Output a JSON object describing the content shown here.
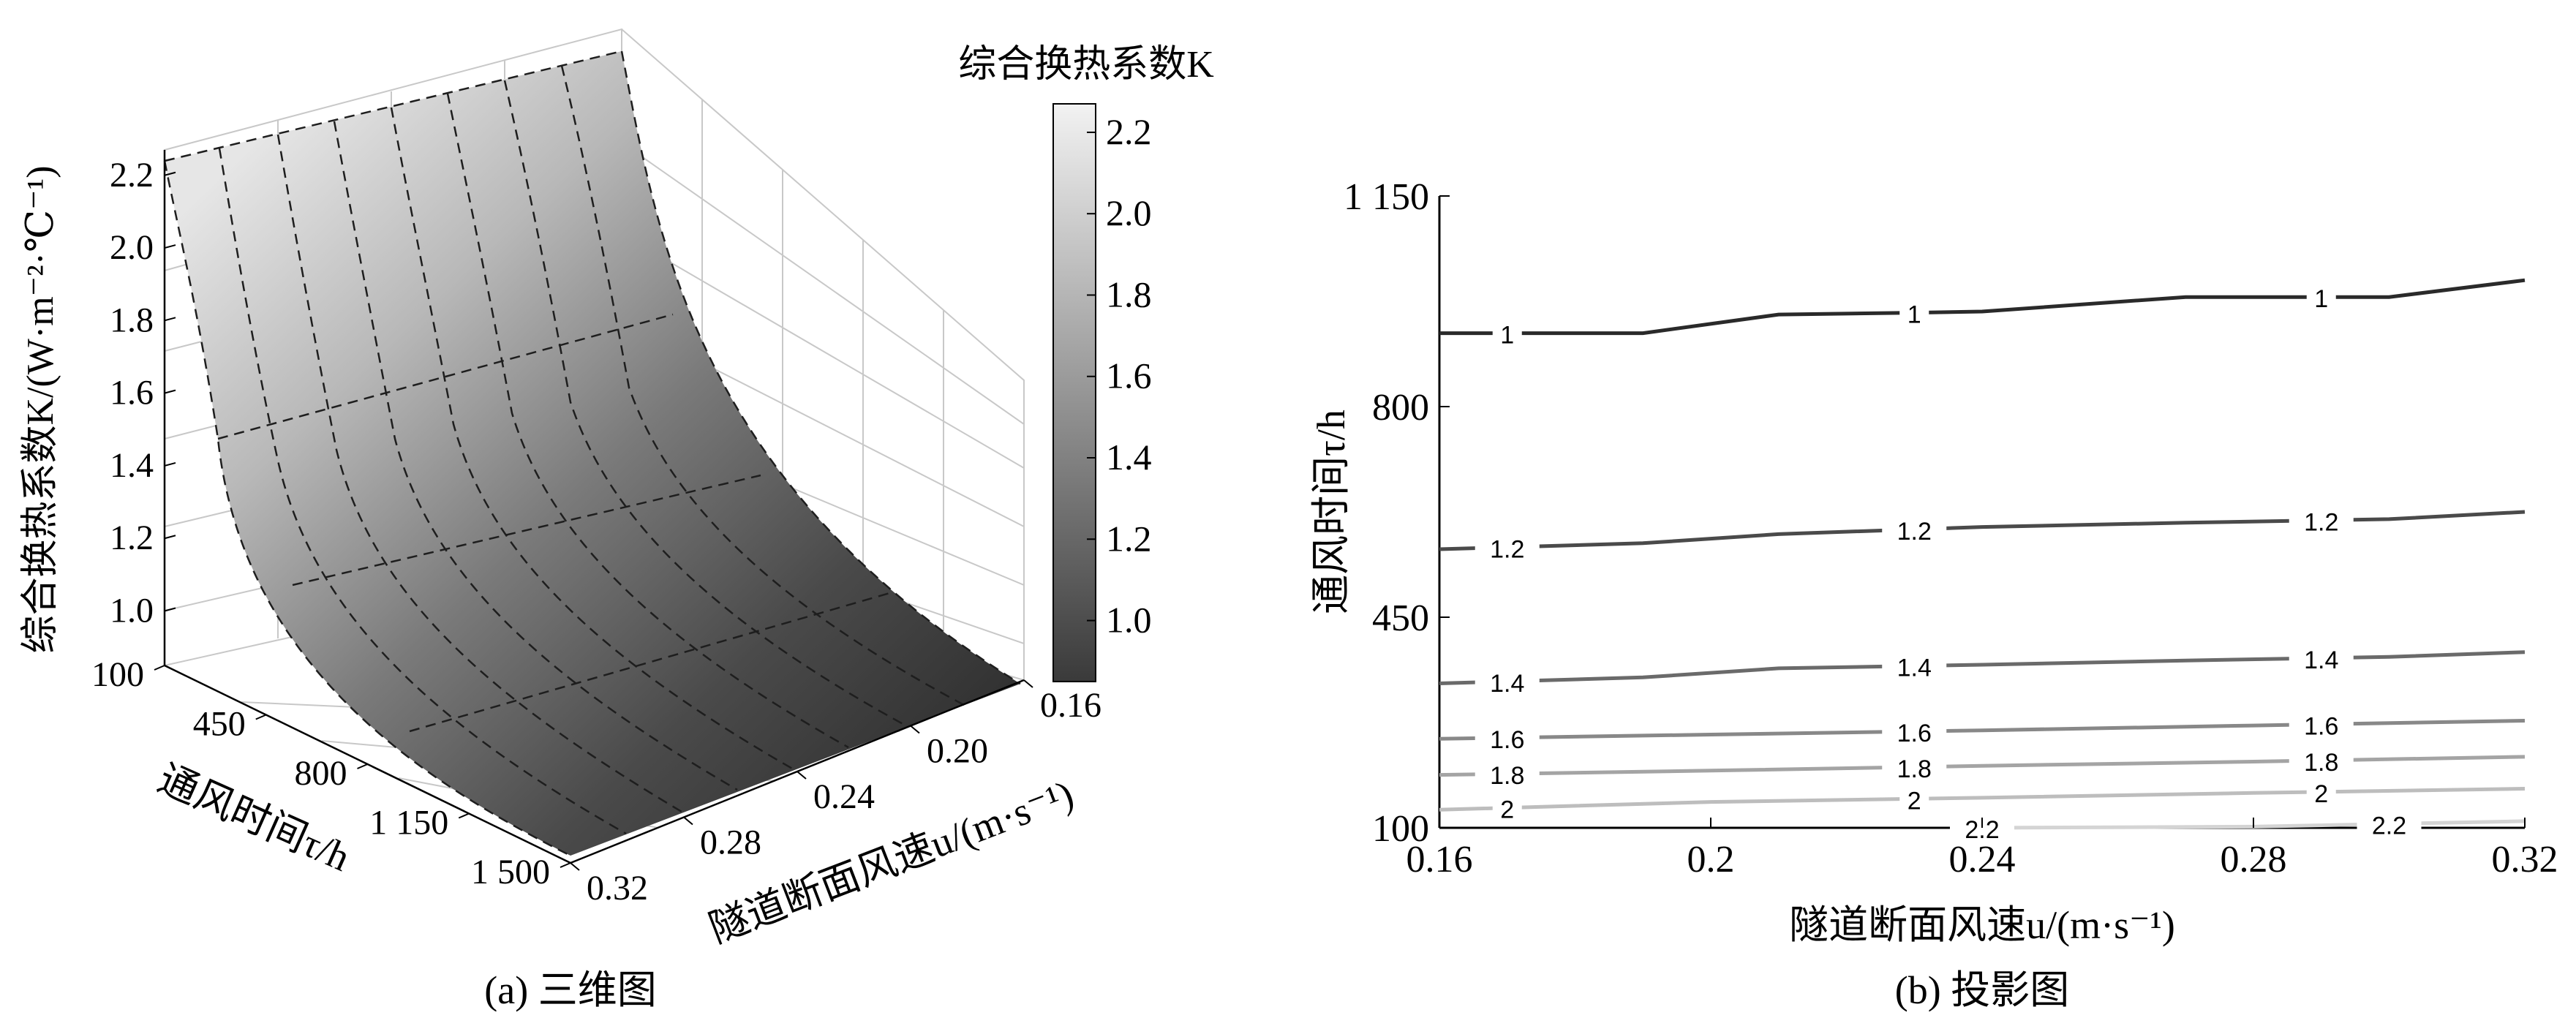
{
  "colors": {
    "axis": "#000000",
    "grid": "#c8c8c8",
    "mesh": "#1e1e1e",
    "background": "#ffffff"
  },
  "chart_data": [
    {
      "type": "surface",
      "panel_caption": "(a) 三维图",
      "colorbar": {
        "title": "综合换热系数K",
        "ticks": [
          1.0,
          1.2,
          1.4,
          1.6,
          1.8,
          2.0,
          2.2
        ],
        "tick_labels": [
          "1.0",
          "1.2",
          "1.4",
          "1.6",
          "1.8",
          "2.0",
          "2.2"
        ],
        "range": [
          0.85,
          2.27
        ],
        "colormap": "gray"
      },
      "zlabel": "综合换热系数K/(W·m⁻²·℃⁻¹)",
      "zlim": [
        0.85,
        2.27
      ],
      "z_ticks": [
        1.0,
        1.2,
        1.4,
        1.6,
        1.8,
        2.0,
        2.2
      ],
      "z_tick_labels": [
        "1.0",
        "1.2",
        "1.4",
        "1.6",
        "1.8",
        "2.0",
        "2.2"
      ],
      "xlabel": "通风时间τ/h",
      "x_ticks": [
        100,
        450,
        800,
        1150,
        1500
      ],
      "x_tick_labels": [
        "100",
        "450",
        "800",
        "1 150",
        "1 500"
      ],
      "ylabel": "隧道断面风速u/(m·s⁻¹)",
      "y_ticks": [
        0.16,
        0.2,
        0.24,
        0.28,
        0.32
      ],
      "y_tick_labels": [
        "0.16",
        "0.20",
        "0.24",
        "0.28",
        "0.32"
      ],
      "grid": true,
      "mesh_tau": [
        100,
        450,
        800,
        1150,
        1500
      ],
      "mesh_u": [
        0.16,
        0.18,
        0.2,
        0.22,
        0.24,
        0.26,
        0.28,
        0.3,
        0.32
      ],
      "K_at_u_0_16": [
        2.26,
        1.45,
        1.18,
        1.02,
        0.9
      ],
      "K_at_u_0_32": [
        2.26,
        1.4,
        1.12,
        0.97,
        0.86
      ]
    },
    {
      "type": "contour",
      "panel_caption": "(b) 投影图",
      "xlabel": "隧道断面风速u/(m·s⁻¹)",
      "ylabel": "通风时间τ/h",
      "xlim": [
        0.16,
        0.32
      ],
      "ylim": [
        100,
        1150
      ],
      "x_ticks": [
        0.16,
        0.2,
        0.24,
        0.28,
        0.32
      ],
      "x_tick_labels": [
        "0.16",
        "0.2",
        "0.24",
        "0.28",
        "0.32"
      ],
      "y_ticks": [
        100,
        450,
        800,
        1150
      ],
      "y_tick_labels": [
        "100",
        "450",
        "800",
        "1 150"
      ],
      "levels": [
        {
          "level": 1,
          "label": "1",
          "color": "#2a2a2a",
          "x": [
            0.16,
            0.19,
            0.21,
            0.23,
            0.24,
            0.27,
            0.3,
            0.32
          ],
          "tau": [
            922,
            922,
            953,
            956,
            958,
            982,
            982,
            1010
          ],
          "label_x": [
            0.17,
            0.23,
            0.29
          ]
        },
        {
          "level": 1.2,
          "label": "1.2",
          "color": "#4a4a4a",
          "x": [
            0.16,
            0.19,
            0.21,
            0.24,
            0.27,
            0.3,
            0.32
          ],
          "tau": [
            563,
            573,
            588,
            600,
            607,
            613,
            625
          ],
          "label_x": [
            0.17,
            0.23,
            0.29
          ]
        },
        {
          "level": 1.4,
          "label": "1.4",
          "color": "#6a6a6a",
          "x": [
            0.16,
            0.19,
            0.21,
            0.24,
            0.27,
            0.3,
            0.32
          ],
          "tau": [
            340,
            350,
            365,
            371,
            378,
            384,
            392
          ],
          "label_x": [
            0.17,
            0.23,
            0.29
          ]
        },
        {
          "level": 1.6,
          "label": "1.6",
          "color": "#888888",
          "x": [
            0.16,
            0.2,
            0.24,
            0.28,
            0.32
          ],
          "tau": [
            248,
            255,
            262,
            270,
            278
          ],
          "label_x": [
            0.17,
            0.23,
            0.29
          ]
        },
        {
          "level": 1.8,
          "label": "1.8",
          "color": "#a4a4a4",
          "x": [
            0.16,
            0.2,
            0.24,
            0.28,
            0.32
          ],
          "tau": [
            188,
            195,
            203,
            210,
            218
          ],
          "label_x": [
            0.17,
            0.23,
            0.29
          ]
        },
        {
          "level": 2,
          "label": "2",
          "color": "#bdbdbd",
          "x": [
            0.16,
            0.2,
            0.24,
            0.28,
            0.32
          ],
          "tau": [
            130,
            143,
            150,
            158,
            165
          ],
          "label_x": [
            0.17,
            0.23,
            0.29
          ]
        },
        {
          "level": 2.2,
          "label": "2.2",
          "color": "#d4d4d4",
          "x": [
            0.24,
            0.28,
            0.32
          ],
          "tau": [
            100,
            102,
            111
          ],
          "label_x": [
            0.24,
            0.3
          ]
        }
      ]
    }
  ]
}
